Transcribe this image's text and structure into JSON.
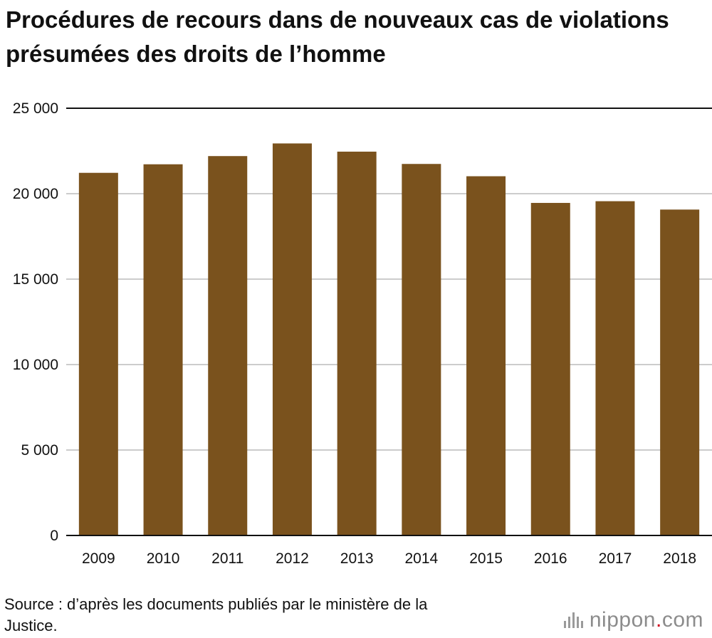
{
  "title": "Procédures de recours dans de nouveaux cas de violations présumées des droits de l’homme",
  "source": "Source : d’après les documents publiés par le ministère de la Justice.",
  "logo": {
    "brand": "nippon",
    "dot": ".",
    "suffix": "com",
    "icon": "nippon-bars-icon"
  },
  "colors": {
    "bar": "#7a521d",
    "grid": "#cccccc",
    "axis": "#111111",
    "text": "#111111",
    "logo_dot": "#d0021b"
  },
  "chart_data": {
    "type": "bar",
    "title": "Procédures de recours dans de nouveaux cas de violations présumées des droits de l’homme",
    "xlabel": "",
    "ylabel": "",
    "categories": [
      "2009",
      "2010",
      "2011",
      "2012",
      "2013",
      "2014",
      "2015",
      "2016",
      "2017",
      "2018"
    ],
    "values": [
      21220,
      21720,
      22200,
      22940,
      22460,
      21740,
      21020,
      19460,
      19560,
      19070
    ],
    "ylim": [
      0,
      25000
    ],
    "yticks": [
      0,
      5000,
      10000,
      15000,
      20000,
      25000
    ],
    "ytick_labels": [
      "0",
      "5 000",
      "10 000",
      "15 000",
      "20 000",
      "25 000"
    ],
    "grid": true,
    "legend": "none"
  }
}
